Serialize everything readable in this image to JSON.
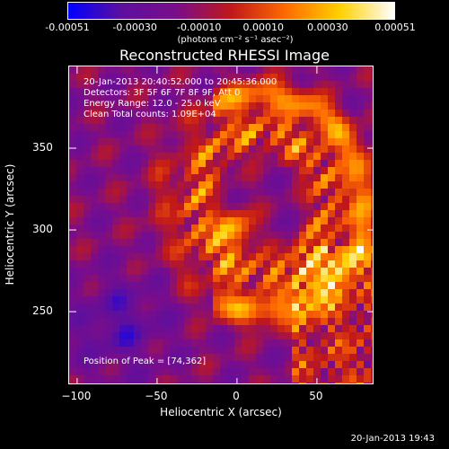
{
  "chart_data": {
    "type": "heatmap",
    "title": "Reconstructed RHESSI Image",
    "xlabel": "Heliocentric X (arcsec)",
    "ylabel": "Heliocentric Y (arcsec)",
    "xlim": [
      -105,
      86
    ],
    "ylim": [
      205,
      400
    ],
    "x_ticks": [
      -100,
      -50,
      0,
      50
    ],
    "y_ticks": [
      250,
      300,
      350
    ],
    "colorbar": {
      "range": [
        -0.00051,
        0.00051
      ],
      "ticks": [
        "-0.00051",
        "-0.00030",
        "-0.00010",
        "0.00010",
        "0.00030",
        "0.00051"
      ],
      "units_label": "(photons cm⁻² s⁻¹ asec⁻²)",
      "colors": [
        "#0000ff",
        "#5e0f9e",
        "#7a0d8a",
        "#c0181a",
        "#ff6a00",
        "#ffd000",
        "#ffffff"
      ]
    },
    "annotations": [
      "20-Jan-2013 20:40:52.000 to 20:45:36.000",
      "Detectors: 3F 5F 6F 7F 8F 9F, Att 0",
      "Energy Range: 12.0 - 25.0 keV",
      "Clean    Total counts: 1.09E+04"
    ],
    "peak_text": "Position of Peak = [74,362]",
    "peak_position": [
      74,
      362
    ]
  },
  "timestamp": "20-Jan-2013 19:43"
}
